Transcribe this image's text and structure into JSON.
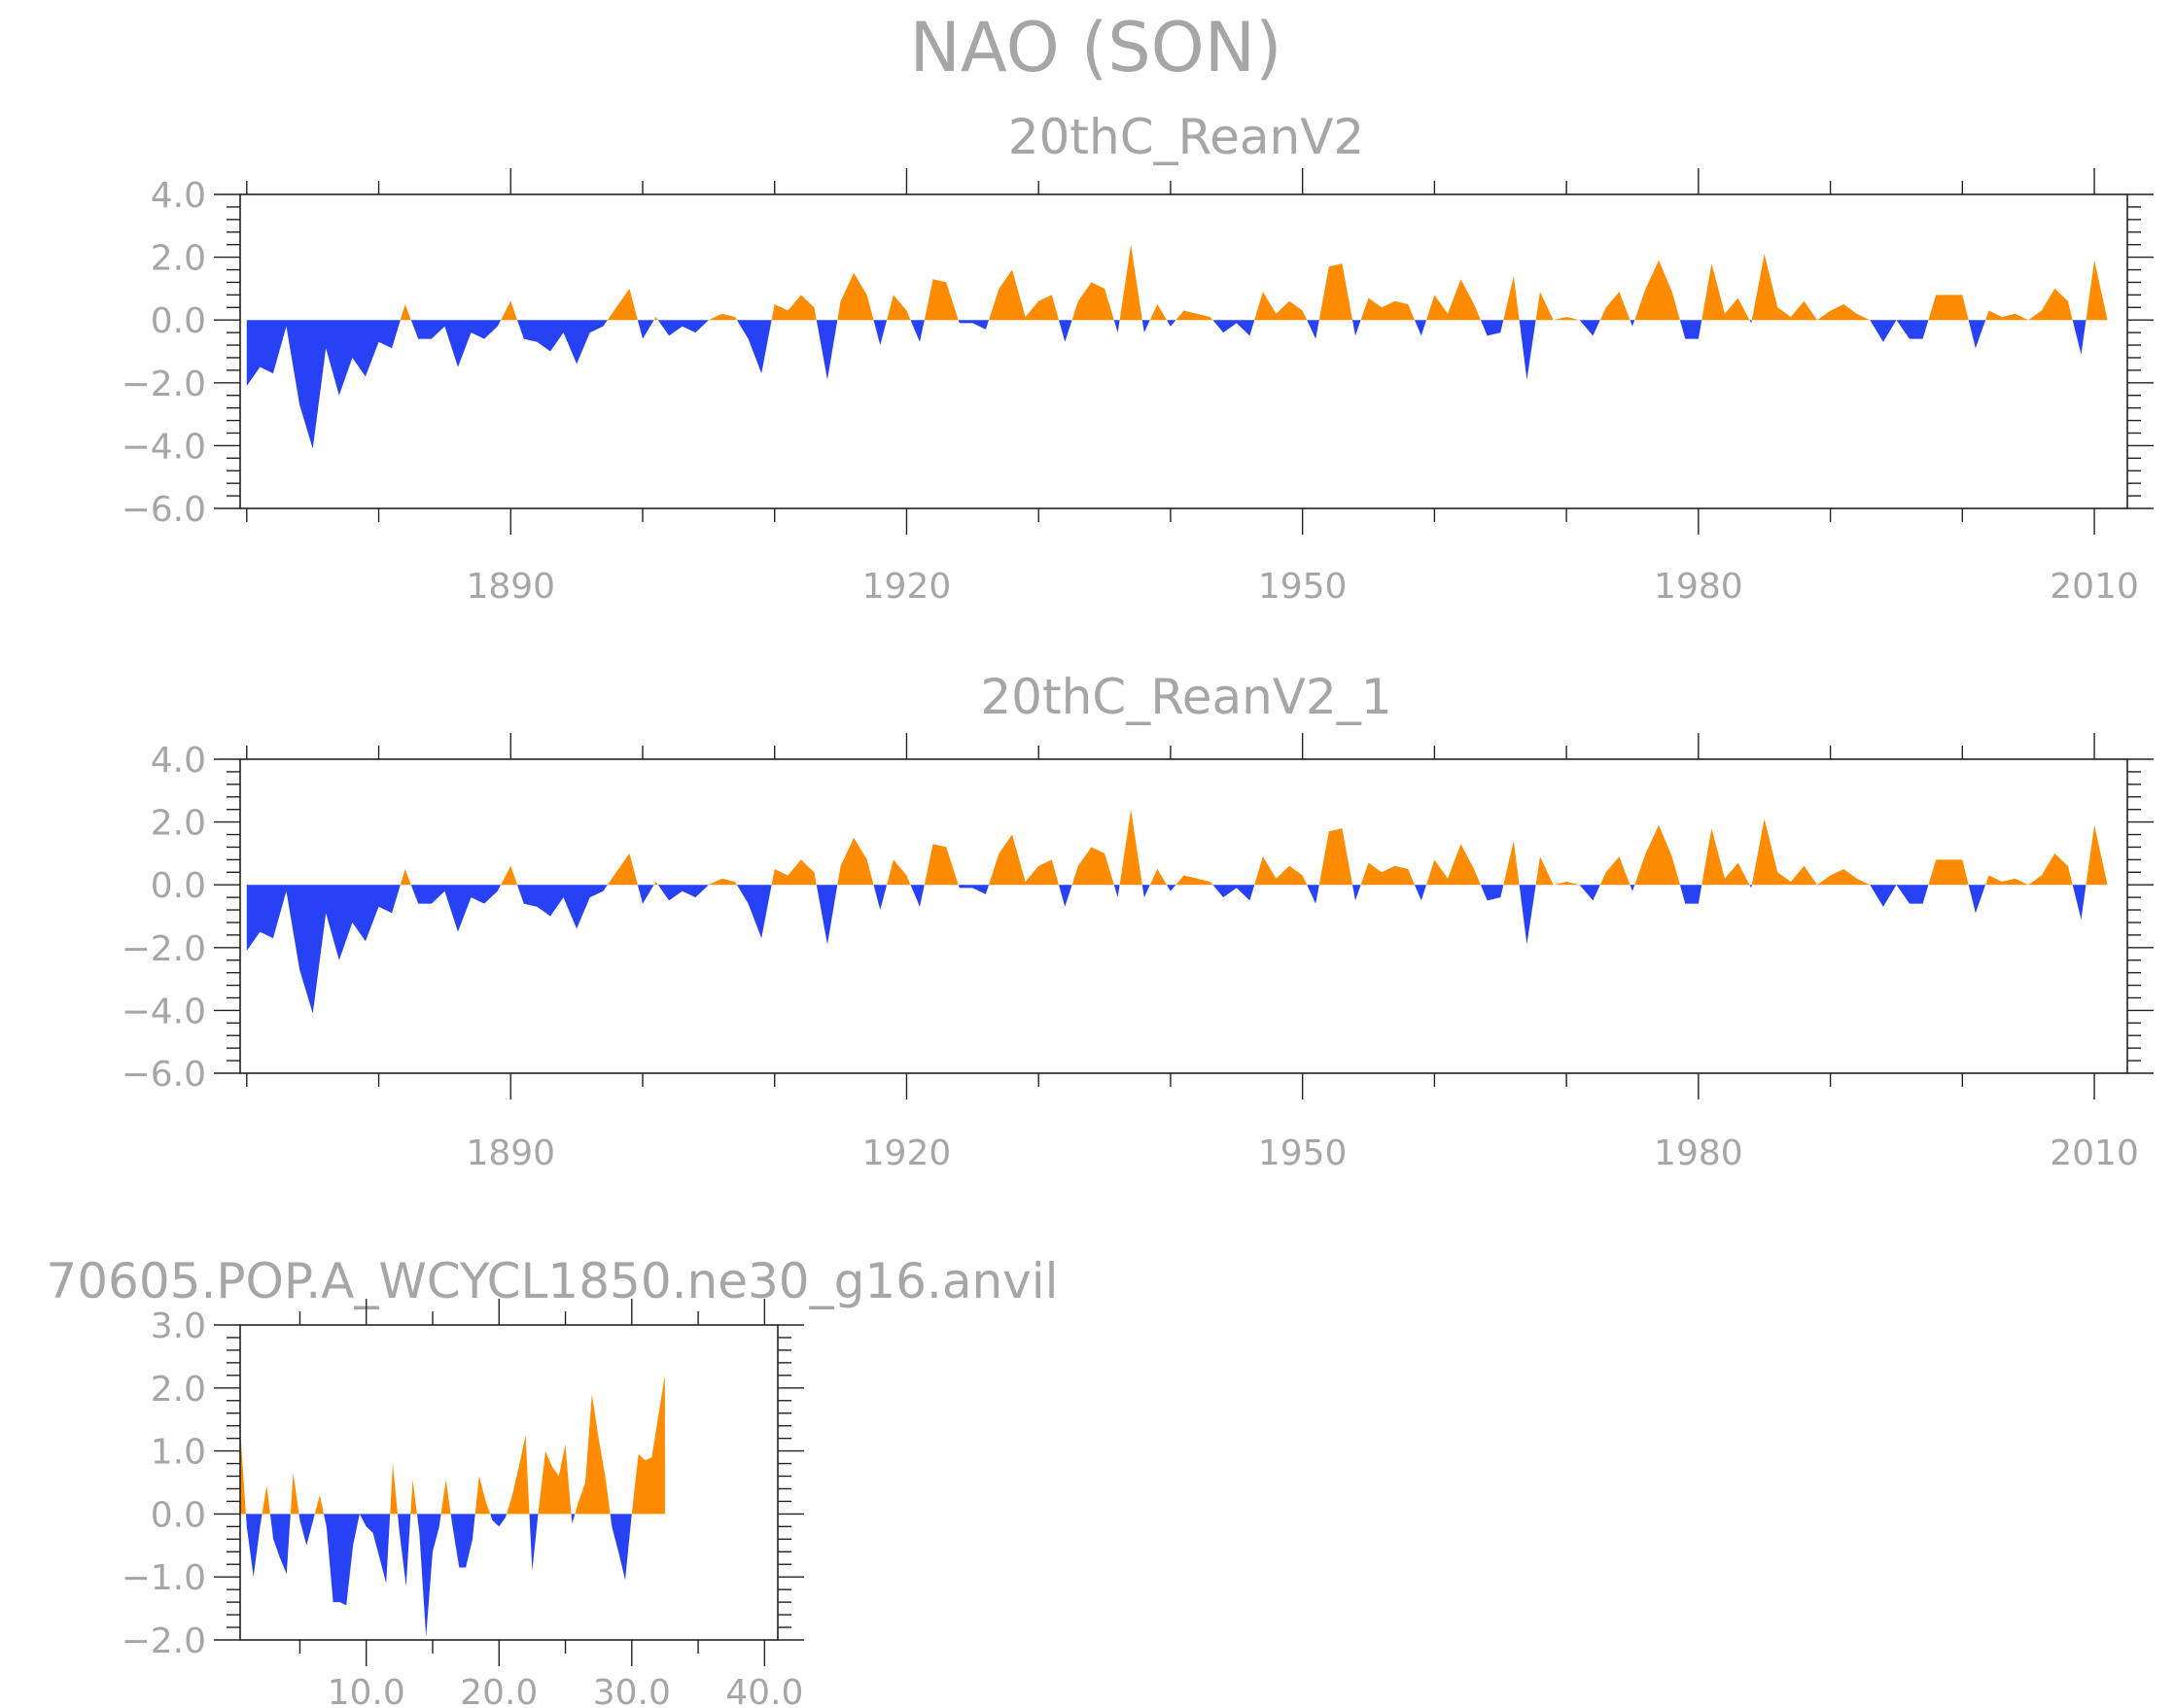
{
  "figure_title": "NAO (SON)",
  "colors": {
    "positive": "#ff8c00",
    "negative": "#2742f5",
    "text": "#a6a6a6",
    "axis": "#222222"
  },
  "chart_data": [
    {
      "type": "area",
      "title": "20thC_ReanV2",
      "xlabel": "",
      "ylabel": "",
      "xlim": [
        1869.5,
        2012.5
      ],
      "ylim": [
        -6,
        4
      ],
      "xticks": [
        1890,
        1920,
        1950,
        1980,
        2010
      ],
      "xtick_labels": [
        "1890",
        "1920",
        "1950",
        "1980",
        "2010"
      ],
      "yticks": [
        -6,
        -4,
        -2,
        0,
        2,
        4
      ],
      "ytick_labels": [
        "−6.0",
        "−4.0",
        "−2.0",
        "0.0",
        "2.0",
        "4.0"
      ],
      "x_start": 1870,
      "values": [
        -2.1,
        -1.5,
        -1.7,
        -0.2,
        -2.7,
        -4.1,
        -0.9,
        -2.4,
        -1.2,
        -1.8,
        -0.7,
        -0.9,
        0.5,
        -0.6,
        -0.6,
        -0.2,
        -1.5,
        -0.4,
        -0.6,
        -0.2,
        0.6,
        -0.6,
        -0.7,
        -1.0,
        -0.4,
        -1.4,
        -0.4,
        -0.2,
        0.4,
        1.0,
        -0.6,
        0.1,
        -0.5,
        -0.2,
        -0.4,
        0.0,
        0.2,
        0.1,
        -0.6,
        -1.7,
        0.5,
        0.3,
        0.8,
        0.4,
        -1.9,
        0.6,
        1.5,
        0.8,
        -0.8,
        0.8,
        0.3,
        -0.7,
        1.3,
        1.2,
        -0.1,
        -0.1,
        -0.3,
        1.0,
        1.6,
        0.1,
        0.6,
        0.8,
        -0.7,
        0.6,
        1.2,
        1.0,
        -0.4,
        2.4,
        -0.4,
        0.5,
        -0.2,
        0.3,
        0.2,
        0.1,
        -0.4,
        -0.1,
        -0.5,
        0.9,
        0.2,
        0.6,
        0.3,
        -0.6,
        1.7,
        1.8,
        -0.5,
        0.7,
        0.4,
        0.6,
        0.5,
        -0.5,
        0.8,
        0.2,
        1.3,
        0.5,
        -0.5,
        -0.4,
        1.4,
        -1.9,
        0.9,
        0.0,
        0.1,
        0.0,
        -0.5,
        0.4,
        0.9,
        -0.2,
        1.0,
        1.9,
        0.9,
        -0.6,
        -0.6,
        1.8,
        0.2,
        0.7,
        -0.1,
        2.1,
        0.4,
        0.1,
        0.6,
        0.0,
        0.3,
        0.5,
        0.2,
        0.0,
        -0.7,
        0.0,
        -0.6,
        -0.6,
        0.8,
        0.8,
        0.8,
        -0.9,
        0.3,
        0.1,
        0.2,
        0.0,
        0.3,
        1.0,
        0.6,
        -1.1,
        1.9,
        0.0
      ]
    },
    {
      "type": "area",
      "title": "20thC_ReanV2_1",
      "xlabel": "",
      "ylabel": "",
      "xlim": [
        1869.5,
        2012.5
      ],
      "ylim": [
        -6,
        4
      ],
      "xticks": [
        1890,
        1920,
        1950,
        1980,
        2010
      ],
      "xtick_labels": [
        "1890",
        "1920",
        "1950",
        "1980",
        "2010"
      ],
      "yticks": [
        -6,
        -4,
        -2,
        0,
        2,
        4
      ],
      "ytick_labels": [
        "−6.0",
        "−4.0",
        "−2.0",
        "0.0",
        "2.0",
        "4.0"
      ],
      "x_start": 1870,
      "values": [
        -2.1,
        -1.5,
        -1.7,
        -0.2,
        -2.7,
        -4.1,
        -0.9,
        -2.4,
        -1.2,
        -1.8,
        -0.7,
        -0.9,
        0.5,
        -0.6,
        -0.6,
        -0.2,
        -1.5,
        -0.4,
        -0.6,
        -0.2,
        0.6,
        -0.6,
        -0.7,
        -1.0,
        -0.4,
        -1.4,
        -0.4,
        -0.2,
        0.4,
        1.0,
        -0.6,
        0.1,
        -0.5,
        -0.2,
        -0.4,
        0.0,
        0.2,
        0.1,
        -0.6,
        -1.7,
        0.5,
        0.3,
        0.8,
        0.4,
        -1.9,
        0.6,
        1.5,
        0.8,
        -0.8,
        0.8,
        0.3,
        -0.7,
        1.3,
        1.2,
        -0.1,
        -0.1,
        -0.3,
        1.0,
        1.6,
        0.1,
        0.6,
        0.8,
        -0.7,
        0.6,
        1.2,
        1.0,
        -0.4,
        2.4,
        -0.4,
        0.5,
        -0.2,
        0.3,
        0.2,
        0.1,
        -0.4,
        -0.1,
        -0.5,
        0.9,
        0.2,
        0.6,
        0.3,
        -0.6,
        1.7,
        1.8,
        -0.5,
        0.7,
        0.4,
        0.6,
        0.5,
        -0.5,
        0.8,
        0.2,
        1.3,
        0.5,
        -0.5,
        -0.4,
        1.4,
        -1.9,
        0.9,
        0.0,
        0.1,
        0.0,
        -0.5,
        0.4,
        0.9,
        -0.2,
        1.0,
        1.9,
        0.9,
        -0.6,
        -0.6,
        1.8,
        0.2,
        0.7,
        -0.1,
        2.1,
        0.4,
        0.1,
        0.6,
        0.0,
        0.3,
        0.5,
        0.2,
        0.0,
        -0.7,
        0.0,
        -0.6,
        -0.6,
        0.8,
        0.8,
        0.8,
        -0.9,
        0.3,
        0.1,
        0.2,
        0.0,
        0.3,
        1.0,
        0.6,
        -1.1,
        1.9,
        0.0
      ]
    },
    {
      "type": "area",
      "title": "70605.POP.A_WCYCL1850.ne30_g16.anvil",
      "xlabel": "",
      "ylabel": "",
      "xlim": [
        0.5,
        41.0
      ],
      "ylim": [
        -2,
        3
      ],
      "xticks": [
        10,
        20,
        30,
        40
      ],
      "xtick_labels": [
        "10.0",
        "20.0",
        "30.0",
        "40.0"
      ],
      "yticks": [
        -2,
        -1,
        0,
        1,
        2,
        3
      ],
      "ytick_labels": [
        "−2.0",
        "−1.0",
        "0.0",
        "1.0",
        "2.0",
        "3.0"
      ],
      "x_start": 0.5,
      "x_step": 0.5,
      "values": [
        1.35,
        -0.2,
        -1.0,
        -0.2,
        0.45,
        -0.4,
        -0.7,
        -0.95,
        0.65,
        -0.1,
        -0.5,
        -0.1,
        0.3,
        -0.2,
        -1.4,
        -1.4,
        -1.45,
        -0.5,
        0.0,
        -0.2,
        -0.3,
        -0.7,
        -1.1,
        0.8,
        -0.3,
        -1.15,
        0.55,
        -0.3,
        -1.95,
        -0.6,
        -0.2,
        0.55,
        -0.2,
        -0.85,
        -0.85,
        -0.4,
        0.6,
        0.2,
        -0.1,
        -0.2,
        -0.05,
        0.3,
        0.75,
        1.25,
        -0.9,
        0.1,
        1.0,
        0.75,
        0.6,
        1.1,
        -0.15,
        0.2,
        0.5,
        1.9,
        1.2,
        0.6,
        -0.2,
        -0.6,
        -1.05,
        0.0,
        0.95,
        0.85,
        0.9,
        1.55,
        2.2
      ]
    }
  ]
}
